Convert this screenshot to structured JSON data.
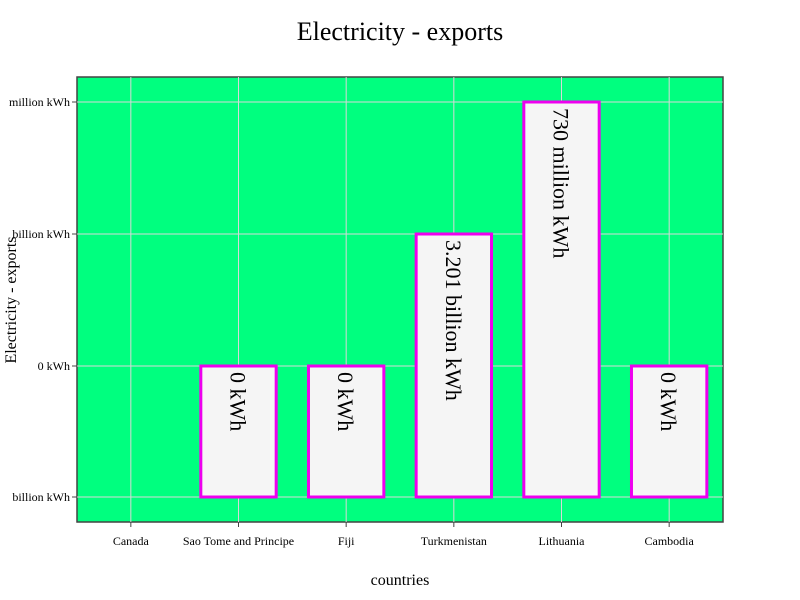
{
  "chart_data": {
    "type": "bar",
    "title": "Electricity - exports",
    "xlabel": "countries",
    "ylabel": "Electricity - exports",
    "categories": [
      "Canada",
      "Sao Tome and Principe",
      "Fiji",
      "Turkmenistan",
      "Lithuania",
      "Cambodia"
    ],
    "values": [
      null,
      0,
      0,
      3.201,
      0.73,
      0
    ],
    "bar_labels": [
      "",
      "0 kWh",
      "0 kWh",
      "3.201 billion kWh",
      "730 million kWh",
      "0 kWh"
    ],
    "y_tick_labels": [
      "billion kWh",
      "0 kWh",
      "billion kWh",
      "million kWh"
    ],
    "plot_background": "#00ff7f",
    "bar_fill": "#f5f5f5",
    "bar_stroke": "#ee00ee",
    "grid": true
  }
}
